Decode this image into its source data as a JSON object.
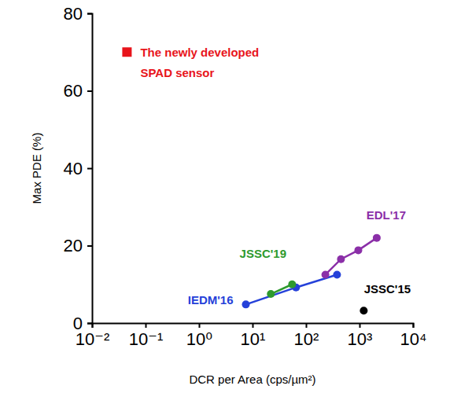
{
  "chart_data": {
    "type": "line",
    "log": "x",
    "x_label": "DCR per Area (cps/µm²)",
    "y_label": "Max PDE (%)",
    "xlim": [
      0.01,
      10000
    ],
    "xticks": [
      {
        "value": 0.01,
        "label": "10⁻²"
      },
      {
        "value": 0.1,
        "label": "10⁻¹"
      },
      {
        "value": 1,
        "label": "10⁰"
      },
      {
        "value": 10,
        "label": "10¹"
      },
      {
        "value": 100,
        "label": "10²"
      },
      {
        "value": 1000,
        "label": "10³"
      },
      {
        "value": 10000,
        "label": "10⁴"
      }
    ],
    "ylim": [
      0,
      80
    ],
    "yticks": [
      0,
      20,
      40,
      60,
      80
    ],
    "grid": false,
    "series": [
      {
        "name": "IEDM'16",
        "color": "#2541d9",
        "marker": "circle",
        "x": [
          7.5,
          65,
          380
        ],
        "values": [
          4.8,
          9.2,
          12.5
        ]
      },
      {
        "name": "JSSC'19",
        "color": "#2e9a2e",
        "marker": "circle",
        "x": [
          22,
          55
        ],
        "values": [
          7.5,
          10.0
        ]
      },
      {
        "name": "EDL'17",
        "color": "#8b2fa8",
        "marker": "circle",
        "x": [
          230,
          450,
          950,
          2100
        ],
        "values": [
          12.5,
          16.5,
          18.8,
          22.0
        ]
      },
      {
        "name": "JSSC'15",
        "color": "#000000",
        "marker": "circle",
        "x": [
          1200
        ],
        "values": [
          3.2
        ]
      },
      {
        "name": "The newly developed SPAD sensor",
        "color": "#e8141b",
        "marker": "square",
        "x": [
          0.045
        ],
        "values": [
          70
        ]
      }
    ]
  }
}
